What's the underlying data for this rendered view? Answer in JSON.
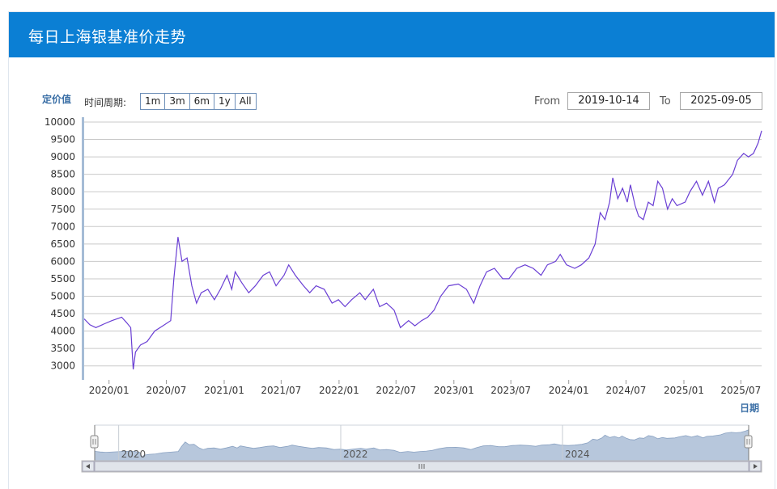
{
  "header": {
    "title": "每日上海银基准价走势"
  },
  "controls": {
    "period_label": "时间周期:",
    "periods": [
      "1m",
      "3m",
      "6m",
      "1y",
      "All"
    ],
    "from_label": "From",
    "from_value": "2019-10-14",
    "to_label": "To",
    "to_value": "2025-09-05"
  },
  "colors": {
    "header_bg": "#0b7fd4",
    "line": "#6a3fd4",
    "line_alt": "#d6394b",
    "navigator_fill": "#b7c7dc",
    "axis_unit": "#3b6fa6"
  },
  "chart_data": {
    "type": "line",
    "ylabel": "定价值",
    "xlabel": "日期",
    "ylim": [
      2700,
      10000
    ],
    "yticks": [
      10000,
      9500,
      9000,
      8500,
      8000,
      7500,
      7000,
      6500,
      6000,
      5500,
      5000,
      4500,
      4000,
      3500,
      3000
    ],
    "xlim": [
      "2019-10-14",
      "2025-09-05"
    ],
    "xticks": [
      "2020/01",
      "2020/07",
      "2021/01",
      "2021/07",
      "2022/01",
      "2022/07",
      "2023/01",
      "2023/07",
      "2024/01",
      "2024/07",
      "2025/01",
      "2025/07"
    ],
    "grid": true,
    "series": [
      {
        "points": [
          [
            "2019-10-14",
            4350
          ],
          [
            "2019-11-01",
            4180
          ],
          [
            "2019-11-20",
            4100
          ],
          [
            "2019-12-15",
            4200
          ],
          [
            "2020-01-10",
            4300
          ],
          [
            "2020-02-10",
            4400
          ],
          [
            "2020-02-25",
            4250
          ],
          [
            "2020-03-10",
            4100
          ],
          [
            "2020-03-18",
            2900
          ],
          [
            "2020-03-25",
            3400
          ],
          [
            "2020-04-10",
            3600
          ],
          [
            "2020-05-01",
            3700
          ],
          [
            "2020-05-25",
            4000
          ],
          [
            "2020-06-20",
            4150
          ],
          [
            "2020-07-15",
            4300
          ],
          [
            "2020-07-25",
            5500
          ],
          [
            "2020-08-07",
            6700
          ],
          [
            "2020-08-20",
            6000
          ],
          [
            "2020-09-05",
            6100
          ],
          [
            "2020-09-20",
            5300
          ],
          [
            "2020-10-05",
            4800
          ],
          [
            "2020-10-20",
            5100
          ],
          [
            "2020-11-10",
            5200
          ],
          [
            "2020-12-01",
            4900
          ],
          [
            "2020-12-20",
            5200
          ],
          [
            "2021-01-10",
            5600
          ],
          [
            "2021-01-25",
            5200
          ],
          [
            "2021-02-05",
            5700
          ],
          [
            "2021-02-25",
            5400
          ],
          [
            "2021-03-20",
            5100
          ],
          [
            "2021-04-10",
            5300
          ],
          [
            "2021-05-05",
            5600
          ],
          [
            "2021-05-25",
            5700
          ],
          [
            "2021-06-15",
            5300
          ],
          [
            "2021-07-10",
            5600
          ],
          [
            "2021-07-25",
            5900
          ],
          [
            "2021-08-15",
            5600
          ],
          [
            "2021-09-10",
            5300
          ],
          [
            "2021-09-30",
            5100
          ],
          [
            "2021-10-20",
            5300
          ],
          [
            "2021-11-15",
            5200
          ],
          [
            "2021-12-10",
            4800
          ],
          [
            "2021-12-30",
            4900
          ],
          [
            "2022-01-20",
            4700
          ],
          [
            "2022-02-10",
            4900
          ],
          [
            "2022-03-08",
            5100
          ],
          [
            "2022-03-25",
            4900
          ],
          [
            "2022-04-20",
            5200
          ],
          [
            "2022-05-10",
            4700
          ],
          [
            "2022-06-01",
            4800
          ],
          [
            "2022-06-25",
            4600
          ],
          [
            "2022-07-15",
            4100
          ],
          [
            "2022-08-10",
            4300
          ],
          [
            "2022-08-30",
            4150
          ],
          [
            "2022-09-20",
            4300
          ],
          [
            "2022-10-10",
            4400
          ],
          [
            "2022-10-30",
            4600
          ],
          [
            "2022-11-20",
            5000
          ],
          [
            "2022-12-15",
            5300
          ],
          [
            "2023-01-15",
            5350
          ],
          [
            "2023-02-10",
            5200
          ],
          [
            "2023-03-05",
            4800
          ],
          [
            "2023-03-25",
            5300
          ],
          [
            "2023-04-15",
            5700
          ],
          [
            "2023-05-10",
            5800
          ],
          [
            "2023-06-05",
            5500
          ],
          [
            "2023-06-25",
            5500
          ],
          [
            "2023-07-20",
            5800
          ],
          [
            "2023-08-15",
            5900
          ],
          [
            "2023-09-10",
            5800
          ],
          [
            "2023-10-05",
            5600
          ],
          [
            "2023-10-25",
            5900
          ],
          [
            "2023-11-20",
            6000
          ],
          [
            "2023-12-05",
            6200
          ],
          [
            "2023-12-25",
            5900
          ],
          [
            "2024-01-20",
            5800
          ],
          [
            "2024-02-10",
            5900
          ],
          [
            "2024-03-05",
            6100
          ],
          [
            "2024-03-25",
            6500
          ],
          [
            "2024-04-10",
            7400
          ],
          [
            "2024-04-25",
            7200
          ],
          [
            "2024-05-10",
            7700
          ],
          [
            "2024-05-20",
            8400
          ],
          [
            "2024-06-05",
            7800
          ],
          [
            "2024-06-20",
            8100
          ],
          [
            "2024-07-05",
            7700
          ],
          [
            "2024-07-15",
            8200
          ],
          [
            "2024-07-30",
            7600
          ],
          [
            "2024-08-10",
            7300
          ],
          [
            "2024-08-25",
            7200
          ],
          [
            "2024-09-10",
            7700
          ],
          [
            "2024-09-25",
            7600
          ],
          [
            "2024-10-10",
            8300
          ],
          [
            "2024-10-25",
            8100
          ],
          [
            "2024-11-10",
            7500
          ],
          [
            "2024-11-25",
            7800
          ],
          [
            "2024-12-10",
            7600
          ],
          [
            "2025-01-05",
            7700
          ],
          [
            "2025-01-20",
            8000
          ],
          [
            "2025-02-10",
            8300
          ],
          [
            "2025-03-01",
            7900
          ],
          [
            "2025-03-20",
            8300
          ],
          [
            "2025-04-08",
            7700
          ],
          [
            "2025-04-20",
            8100
          ],
          [
            "2025-05-10",
            8200
          ],
          [
            "2025-06-05",
            8500
          ],
          [
            "2025-06-20",
            8900
          ],
          [
            "2025-07-10",
            9100
          ],
          [
            "2025-07-25",
            9000
          ],
          [
            "2025-08-10",
            9100
          ],
          [
            "2025-08-25",
            9400
          ],
          [
            "2025-09-05",
            9750
          ]
        ]
      }
    ],
    "navigator_labels": [
      "2020",
      "2022",
      "2024"
    ]
  }
}
